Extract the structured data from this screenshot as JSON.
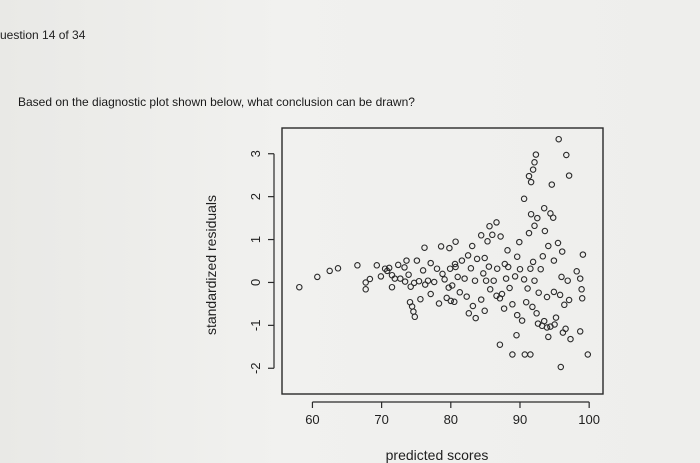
{
  "question": {
    "counter": "uestion 14 of 34",
    "prompt": "Based on the diagnostic plot shown below, what conclusion can be drawn?"
  },
  "chart_data": {
    "type": "scatter",
    "title": "",
    "xlabel": "predicted scores",
    "ylabel": "standardized residuals",
    "xlim": [
      55.6,
      102
    ],
    "ylim": [
      -2.6,
      3.6
    ],
    "xticks": [
      60,
      70,
      80,
      90,
      100
    ],
    "yticks": [
      -2,
      -1,
      0,
      1,
      2,
      3
    ],
    "marker": "open-circle",
    "grid": false,
    "points": [
      [
        58.1,
        -0.11
      ],
      [
        60.7,
        0.13
      ],
      [
        62.5,
        0.27
      ],
      [
        63.7,
        0.33
      ],
      [
        66.5,
        0.4
      ],
      [
        67.7,
        -0.16
      ],
      [
        67.7,
        0.0
      ],
      [
        68.3,
        0.08
      ],
      [
        69.3,
        0.4
      ],
      [
        69.9,
        0.14
      ],
      [
        70.5,
        0.32
      ],
      [
        70.8,
        0.27
      ],
      [
        71.1,
        0.34
      ],
      [
        71.5,
        0.17
      ],
      [
        71.5,
        -0.11
      ],
      [
        71.9,
        0.09
      ],
      [
        72.7,
        0.09
      ],
      [
        72.4,
        0.41
      ],
      [
        73.3,
        0.35
      ],
      [
        73.6,
        0.51
      ],
      [
        74.1,
        -0.46
      ],
      [
        74.4,
        -0.56
      ],
      [
        74.6,
        -0.68
      ],
      [
        74.8,
        -0.8
      ],
      [
        74.2,
        -0.1
      ],
      [
        73.4,
        0.02
      ],
      [
        73.9,
        0.18
      ],
      [
        74.7,
        -0.01
      ],
      [
        75.4,
        0.03
      ],
      [
        75.6,
        -0.39
      ],
      [
        75.1,
        0.51
      ],
      [
        76.0,
        0.28
      ],
      [
        76.3,
        -0.05
      ],
      [
        76.7,
        0.04
      ],
      [
        77.1,
        -0.27
      ],
      [
        77.6,
        0.01
      ],
      [
        78.0,
        0.32
      ],
      [
        78.3,
        -0.49
      ],
      [
        78.8,
        0.2
      ],
      [
        79.1,
        0.07
      ],
      [
        79.4,
        -0.36
      ],
      [
        79.7,
        -0.12
      ],
      [
        79.9,
        0.32
      ],
      [
        80.2,
        -0.07
      ],
      [
        80.5,
        -0.45
      ],
      [
        80.7,
        0.36
      ],
      [
        81.0,
        0.13
      ],
      [
        81.3,
        -0.23
      ],
      [
        81.6,
        0.51
      ],
      [
        82.0,
        0.09
      ],
      [
        82.3,
        -0.33
      ],
      [
        82.6,
        -0.72
      ],
      [
        82.9,
        0.33
      ],
      [
        83.2,
        -0.55
      ],
      [
        83.5,
        0.04
      ],
      [
        83.8,
        0.55
      ],
      [
        83.6,
        -0.83
      ],
      [
        84.4,
        -0.4
      ],
      [
        84.7,
        0.21
      ],
      [
        84.9,
        -0.66
      ],
      [
        85.1,
        0.04
      ],
      [
        85.5,
        0.37
      ],
      [
        85.7,
        -0.16
      ],
      [
        86.2,
        0.04
      ],
      [
        86.6,
        -0.31
      ],
      [
        87.1,
        -0.37
      ],
      [
        87.4,
        -0.27
      ],
      [
        87.7,
        -0.61
      ],
      [
        88.0,
        0.09
      ],
      [
        88.3,
        0.36
      ],
      [
        88.5,
        -0.13
      ],
      [
        88.9,
        -0.51
      ],
      [
        89.3,
        0.14
      ],
      [
        89.6,
        -0.76
      ],
      [
        90.0,
        0.31
      ],
      [
        90.3,
        -0.89
      ],
      [
        90.6,
        0.07
      ],
      [
        90.9,
        -0.46
      ],
      [
        91.1,
        -0.14
      ],
      [
        91.5,
        0.32
      ],
      [
        91.8,
        -0.57
      ],
      [
        92.1,
        0.04
      ],
      [
        92.4,
        -0.72
      ],
      [
        92.7,
        -0.24
      ],
      [
        93.0,
        0.31
      ],
      [
        93.2,
        -1.01
      ],
      [
        93.5,
        -0.9
      ],
      [
        93.9,
        -0.34
      ],
      [
        94.1,
        -1.27
      ],
      [
        94.4,
        -1.03
      ],
      [
        89.5,
        -1.23
      ],
      [
        88.9,
        -1.68
      ],
      [
        90.7,
        -1.68
      ],
      [
        91.5,
        -1.68
      ],
      [
        93.9,
        -1.05
      ],
      [
        92.6,
        -0.96
      ],
      [
        87.1,
        -1.45
      ],
      [
        80.0,
        -0.43
      ],
      [
        79.8,
        0.8
      ],
      [
        80.7,
        0.95
      ],
      [
        83.1,
        0.85
      ],
      [
        84.4,
        1.1
      ],
      [
        85.3,
        0.96
      ],
      [
        86.0,
        1.11
      ],
      [
        87.2,
        1.07
      ],
      [
        85.6,
        1.31
      ],
      [
        86.6,
        1.4
      ],
      [
        88.2,
        0.75
      ],
      [
        89.9,
        0.94
      ],
      [
        91.3,
        1.15
      ],
      [
        92.1,
        1.32
      ],
      [
        93.6,
        1.2
      ],
      [
        91.6,
        1.59
      ],
      [
        92.5,
        1.5
      ],
      [
        94.8,
        1.51
      ],
      [
        95.5,
        0.92
      ],
      [
        94.1,
        0.85
      ],
      [
        94.4,
        1.61
      ],
      [
        96.1,
        0.72
      ],
      [
        98.2,
        0.26
      ],
      [
        98.7,
        0.09
      ],
      [
        99.1,
        0.65
      ],
      [
        98.9,
        -0.16
      ],
      [
        99.0,
        -0.37
      ],
      [
        98.7,
        -1.14
      ],
      [
        99.8,
        -1.68
      ],
      [
        97.1,
        -0.41
      ],
      [
        96.9,
        0.04
      ],
      [
        96.4,
        -0.52
      ],
      [
        95.8,
        -0.29
      ],
      [
        95.0,
        -0.98
      ],
      [
        96.2,
        -1.17
      ],
      [
        96.6,
        -1.08
      ],
      [
        95.2,
        -0.82
      ],
      [
        97.3,
        -1.32
      ],
      [
        95.9,
        -1.97
      ],
      [
        91.3,
        2.48
      ],
      [
        91.6,
        2.34
      ],
      [
        91.9,
        2.63
      ],
      [
        92.3,
        2.98
      ],
      [
        92.1,
        2.8
      ],
      [
        94.6,
        2.28
      ],
      [
        95.6,
        3.34
      ],
      [
        96.7,
        2.97
      ],
      [
        97.1,
        2.49
      ],
      [
        90.6,
        1.95
      ],
      [
        93.5,
        1.73
      ],
      [
        89.6,
        0.6
      ],
      [
        87.8,
        0.43
      ],
      [
        86.7,
        0.32
      ],
      [
        84.9,
        0.57
      ],
      [
        82.5,
        0.63
      ],
      [
        77.1,
        0.45
      ],
      [
        76.2,
        0.81
      ],
      [
        78.6,
        0.84
      ],
      [
        80.6,
        0.43
      ],
      [
        91.9,
        0.48
      ],
      [
        93.3,
        0.61
      ],
      [
        94.9,
        0.51
      ],
      [
        96.0,
        0.13
      ],
      [
        94.9,
        -0.22
      ]
    ]
  }
}
